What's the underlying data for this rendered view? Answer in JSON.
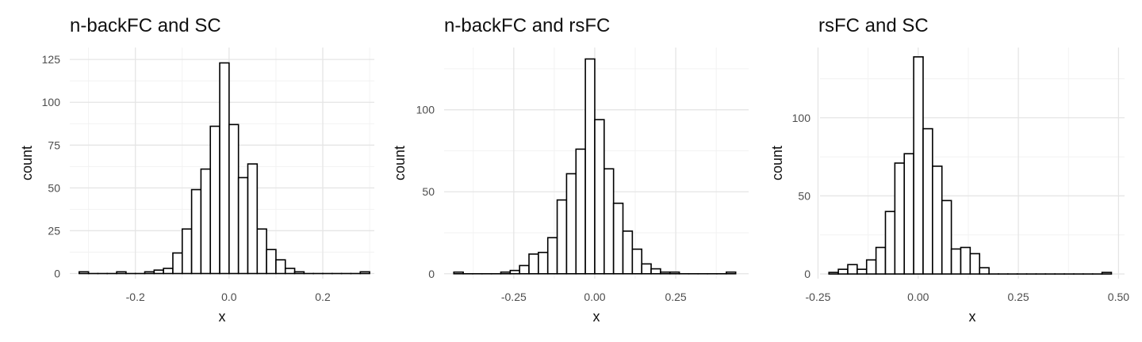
{
  "chart_data": [
    {
      "type": "bar",
      "title": "n-backFC and SC",
      "xlabel": "x",
      "ylabel": "count",
      "xlim": [
        -0.34,
        0.31
      ],
      "ylim": [
        -3,
        132
      ],
      "x_ticks": [
        -0.2,
        0.0,
        0.2
      ],
      "x_tick_labels": [
        "-0.2",
        "0.0",
        "0.2"
      ],
      "y_ticks": [
        0,
        25,
        50,
        75,
        100,
        125
      ],
      "y_tick_labels": [
        "0",
        "25",
        "50",
        "75",
        "100",
        "125"
      ],
      "grid": true,
      "bin_width": 0.02,
      "bin_centers": [
        -0.31,
        -0.29,
        -0.27,
        -0.25,
        -0.23,
        -0.21,
        -0.19,
        -0.17,
        -0.15,
        -0.13,
        -0.11,
        -0.09,
        -0.07,
        -0.05,
        -0.03,
        -0.01,
        0.01,
        0.03,
        0.05,
        0.07,
        0.09,
        0.11,
        0.13,
        0.15,
        0.17,
        0.19,
        0.21,
        0.23,
        0.25,
        0.27,
        0.29
      ],
      "values": [
        1,
        0,
        0,
        0,
        1,
        0,
        0,
        1,
        2,
        3,
        12,
        26,
        49,
        61,
        86,
        123,
        87,
        56,
        64,
        26,
        14,
        8,
        3,
        1,
        0,
        0,
        0,
        0,
        0,
        0,
        1
      ]
    },
    {
      "type": "bar",
      "title": "n-backFC and rsFC",
      "xlabel": "x",
      "ylabel": "count",
      "xlim": [
        -0.465,
        0.475
      ],
      "ylim": [
        -3,
        138
      ],
      "x_ticks": [
        -0.25,
        0.0,
        0.25
      ],
      "x_tick_labels": [
        "-0.25",
        "0.00",
        "0.25"
      ],
      "y_ticks": [
        0,
        50,
        100
      ],
      "y_tick_labels": [
        "0",
        "50",
        "100"
      ],
      "grid": true,
      "bin_width": 0.029,
      "bin_centers": [
        -0.4205,
        -0.3915,
        -0.3625,
        -0.3335,
        -0.3045,
        -0.2755,
        -0.2465,
        -0.2175,
        -0.1885,
        -0.1595,
        -0.1305,
        -0.1015,
        -0.0725,
        -0.0435,
        -0.0145,
        0.0145,
        0.0435,
        0.0725,
        0.1015,
        0.1305,
        0.1595,
        0.1885,
        0.2175,
        0.2465,
        0.2755,
        0.3045,
        0.3335,
        0.3625,
        0.3915,
        0.4205
      ],
      "values": [
        1,
        0,
        0,
        0,
        0,
        1,
        2,
        5,
        12,
        13,
        22,
        45,
        61,
        76,
        131,
        94,
        64,
        43,
        26,
        15,
        6,
        3,
        1,
        1,
        0,
        0,
        0,
        0,
        0,
        1
      ]
    },
    {
      "type": "bar",
      "title": "rsFC and SC",
      "xlabel": "x",
      "ylabel": "count",
      "xlim": [
        -0.245,
        0.515
      ],
      "ylim": [
        -3,
        145
      ],
      "x_ticks": [
        -0.25,
        0.0,
        0.25,
        0.5
      ],
      "x_tick_labels": [
        "-0.25",
        "0.00",
        "0.25",
        "0.50"
      ],
      "y_ticks": [
        0,
        50,
        100
      ],
      "y_tick_labels": [
        "0",
        "50",
        "100"
      ],
      "grid": true,
      "bin_width": 0.0235,
      "bin_centers": [
        -0.211,
        -0.1875,
        -0.164,
        -0.1405,
        -0.117,
        -0.0935,
        -0.07,
        -0.0465,
        -0.023,
        0.0005,
        0.024,
        0.0475,
        0.071,
        0.0945,
        0.118,
        0.1415,
        0.165,
        0.1885,
        0.212,
        0.2355,
        0.259,
        0.2825,
        0.306,
        0.3295,
        0.353,
        0.3765,
        0.4,
        0.4235,
        0.447,
        0.4705
      ],
      "values": [
        1,
        3,
        6,
        3,
        9,
        17,
        40,
        71,
        77,
        139,
        93,
        69,
        47,
        16,
        17,
        13,
        4,
        0,
        0,
        0,
        0,
        0,
        0,
        0,
        0,
        0,
        0,
        0,
        0,
        1
      ]
    }
  ]
}
